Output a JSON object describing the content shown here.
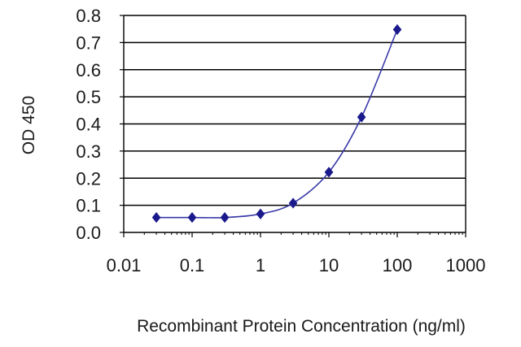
{
  "chart_data": {
    "type": "line",
    "title": "",
    "xlabel": "Recombinant Protein Concentration (ng/ml)",
    "ylabel": "OD 450",
    "x_scale": "log",
    "xlim": [
      0.01,
      1000
    ],
    "ylim": [
      0.0,
      0.8
    ],
    "x_ticks": [
      0.01,
      0.1,
      1,
      10,
      100,
      1000
    ],
    "x_tick_labels": [
      "0.01",
      "0.1",
      "1",
      "10",
      "100",
      "1000"
    ],
    "y_ticks": [
      0.0,
      0.1,
      0.2,
      0.3,
      0.4,
      0.5,
      0.6,
      0.7,
      0.8
    ],
    "y_tick_labels": [
      "0.0",
      "0.1",
      "0.2",
      "0.3",
      "0.4",
      "0.5",
      "0.6",
      "0.7",
      "0.8"
    ],
    "grid": "horizontal",
    "legend": "none",
    "series": [
      {
        "x": [
          0.03,
          0.1,
          0.3,
          1,
          3,
          10,
          30,
          100
        ],
        "y": [
          0.055,
          0.055,
          0.055,
          0.068,
          0.108,
          0.222,
          0.425,
          0.748
        ]
      }
    ],
    "colors": {
      "line": "#3a3aa8",
      "marker": "#1a1a8c",
      "grid": "#000000",
      "axis": "#000000"
    },
    "marker": "diamond"
  }
}
